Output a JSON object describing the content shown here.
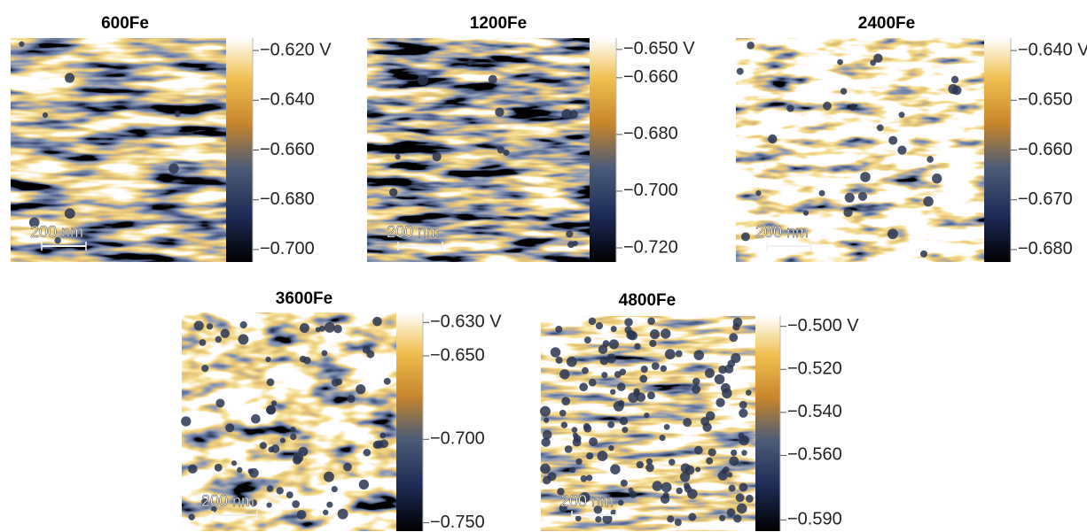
{
  "panels": [
    {
      "title": "600Fe",
      "scale_bar": "200 nm",
      "colorbar": {
        "clim": [
          -0.705,
          -0.615
        ],
        "ticks": [
          {
            "value": -0.62,
            "label": "−0.620 V"
          },
          {
            "value": -0.64,
            "label": "−0.640"
          },
          {
            "value": -0.66,
            "label": "−0.660"
          },
          {
            "value": -0.68,
            "label": "−0.680"
          },
          {
            "value": -0.7,
            "label": "−0.700"
          }
        ]
      }
    },
    {
      "title": "1200Fe",
      "scale_bar": "200 nm",
      "colorbar": {
        "clim": [
          -0.725,
          -0.646
        ],
        "ticks": [
          {
            "value": -0.65,
            "label": "−0.650 V"
          },
          {
            "value": -0.66,
            "label": "−0.660"
          },
          {
            "value": -0.68,
            "label": "−0.680"
          },
          {
            "value": -0.7,
            "label": "−0.700"
          },
          {
            "value": -0.72,
            "label": "−0.720"
          }
        ]
      }
    },
    {
      "title": "2400Fe",
      "scale_bar": "200 nm",
      "colorbar": {
        "clim": [
          -0.6825,
          -0.6375
        ],
        "ticks": [
          {
            "value": -0.64,
            "label": "−0.640 V"
          },
          {
            "value": -0.65,
            "label": "−0.650"
          },
          {
            "value": -0.66,
            "label": "−0.660"
          },
          {
            "value": -0.67,
            "label": "−0.670"
          },
          {
            "value": -0.68,
            "label": "−0.680"
          }
        ]
      }
    },
    {
      "title": "3600Fe",
      "scale_bar": "200 nm",
      "colorbar": {
        "clim": [
          -0.755,
          -0.624
        ],
        "ticks": [
          {
            "value": -0.63,
            "label": "−0.630 V"
          },
          {
            "value": -0.65,
            "label": "−0.650"
          },
          {
            "value": -0.7,
            "label": "−0.700"
          },
          {
            "value": -0.75,
            "label": "−0.750"
          }
        ]
      }
    },
    {
      "title": "4800Fe",
      "scale_bar": "200 nm",
      "colorbar": {
        "clim": [
          -0.5952,
          -0.4952
        ],
        "ticks": [
          {
            "value": -0.5,
            "label": "−0.500 V"
          },
          {
            "value": -0.52,
            "label": "−0.520"
          },
          {
            "value": -0.54,
            "label": "−0.540"
          },
          {
            "value": -0.56,
            "label": "−0.560"
          },
          {
            "value": -0.59,
            "label": "−0.590"
          }
        ]
      }
    }
  ]
}
